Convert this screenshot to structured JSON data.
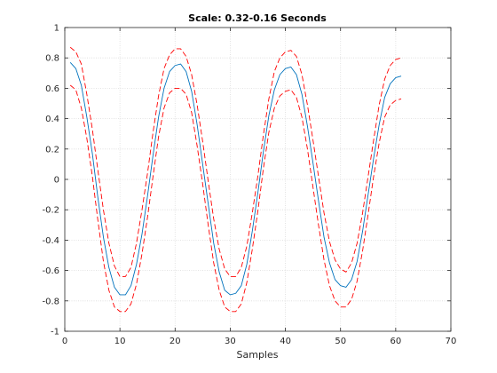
{
  "chart_data": {
    "type": "line",
    "title": "Scale: 0.32-0.16 Seconds",
    "xlabel": "Samples",
    "ylabel": "",
    "xlim": [
      0,
      70
    ],
    "ylim": [
      -1,
      1
    ],
    "xticks": [
      0,
      10,
      20,
      30,
      40,
      50,
      60,
      70
    ],
    "yticks": [
      -1,
      -0.8,
      -0.6,
      -0.4,
      -0.2,
      0,
      0.2,
      0.4,
      0.6,
      0.8,
      1
    ],
    "grid": true,
    "legend": "none",
    "x": [
      1,
      2,
      3,
      4,
      5,
      6,
      7,
      8,
      9,
      10,
      11,
      12,
      13,
      14,
      15,
      16,
      17,
      18,
      19,
      20,
      21,
      22,
      23,
      24,
      25,
      26,
      27,
      28,
      29,
      30,
      31,
      32,
      33,
      34,
      35,
      36,
      37,
      38,
      39,
      40,
      41,
      42,
      43,
      44,
      45,
      46,
      47,
      48,
      49,
      50,
      51,
      52,
      53,
      54,
      55,
      56,
      57,
      58,
      59,
      60,
      61
    ],
    "series": [
      {
        "style": "solid",
        "color": "#0072bd",
        "values": [
          0.77,
          0.73,
          0.62,
          0.41,
          0.17,
          -0.12,
          -0.38,
          -0.58,
          -0.71,
          -0.76,
          -0.76,
          -0.7,
          -0.56,
          -0.36,
          -0.11,
          0.16,
          0.41,
          0.6,
          0.71,
          0.75,
          0.76,
          0.71,
          0.58,
          0.36,
          0.1,
          -0.16,
          -0.42,
          -0.61,
          -0.73,
          -0.76,
          -0.75,
          -0.7,
          -0.56,
          -0.34,
          -0.09,
          0.18,
          0.42,
          0.59,
          0.69,
          0.73,
          0.74,
          0.69,
          0.56,
          0.35,
          0.11,
          -0.14,
          -0.38,
          -0.55,
          -0.66,
          -0.7,
          -0.71,
          -0.66,
          -0.54,
          -0.34,
          -0.1,
          0.14,
          0.36,
          0.54,
          0.63,
          0.67,
          0.68
        ]
      },
      {
        "style": "dashed",
        "color": "#ff0000",
        "values": [
          0.87,
          0.84,
          0.76,
          0.56,
          0.33,
          0.06,
          -0.2,
          -0.42,
          -0.57,
          -0.64,
          -0.64,
          -0.58,
          -0.42,
          -0.2,
          0.04,
          0.31,
          0.55,
          0.73,
          0.82,
          0.86,
          0.86,
          0.81,
          0.69,
          0.49,
          0.25,
          -0.01,
          -0.26,
          -0.46,
          -0.59,
          -0.64,
          -0.64,
          -0.58,
          -0.44,
          -0.22,
          0.02,
          0.29,
          0.53,
          0.71,
          0.8,
          0.84,
          0.85,
          0.81,
          0.69,
          0.49,
          0.26,
          0.02,
          -0.22,
          -0.41,
          -0.53,
          -0.59,
          -0.61,
          -0.55,
          -0.42,
          -0.22,
          0.02,
          0.26,
          0.49,
          0.66,
          0.75,
          0.79,
          0.8
        ]
      },
      {
        "style": "dashed",
        "color": "#ff0000",
        "values": [
          0.62,
          0.59,
          0.47,
          0.27,
          0.02,
          -0.27,
          -0.54,
          -0.73,
          -0.84,
          -0.87,
          -0.87,
          -0.82,
          -0.69,
          -0.49,
          -0.25,
          0.02,
          0.28,
          0.47,
          0.57,
          0.6,
          0.6,
          0.56,
          0.44,
          0.22,
          -0.03,
          -0.3,
          -0.55,
          -0.73,
          -0.84,
          -0.87,
          -0.87,
          -0.82,
          -0.68,
          -0.46,
          -0.21,
          0.07,
          0.31,
          0.47,
          0.55,
          0.58,
          0.59,
          0.54,
          0.41,
          0.2,
          -0.05,
          -0.3,
          -0.53,
          -0.7,
          -0.8,
          -0.84,
          -0.84,
          -0.79,
          -0.67,
          -0.47,
          -0.23,
          0.02,
          0.24,
          0.41,
          0.49,
          0.52,
          0.53
        ]
      }
    ]
  }
}
